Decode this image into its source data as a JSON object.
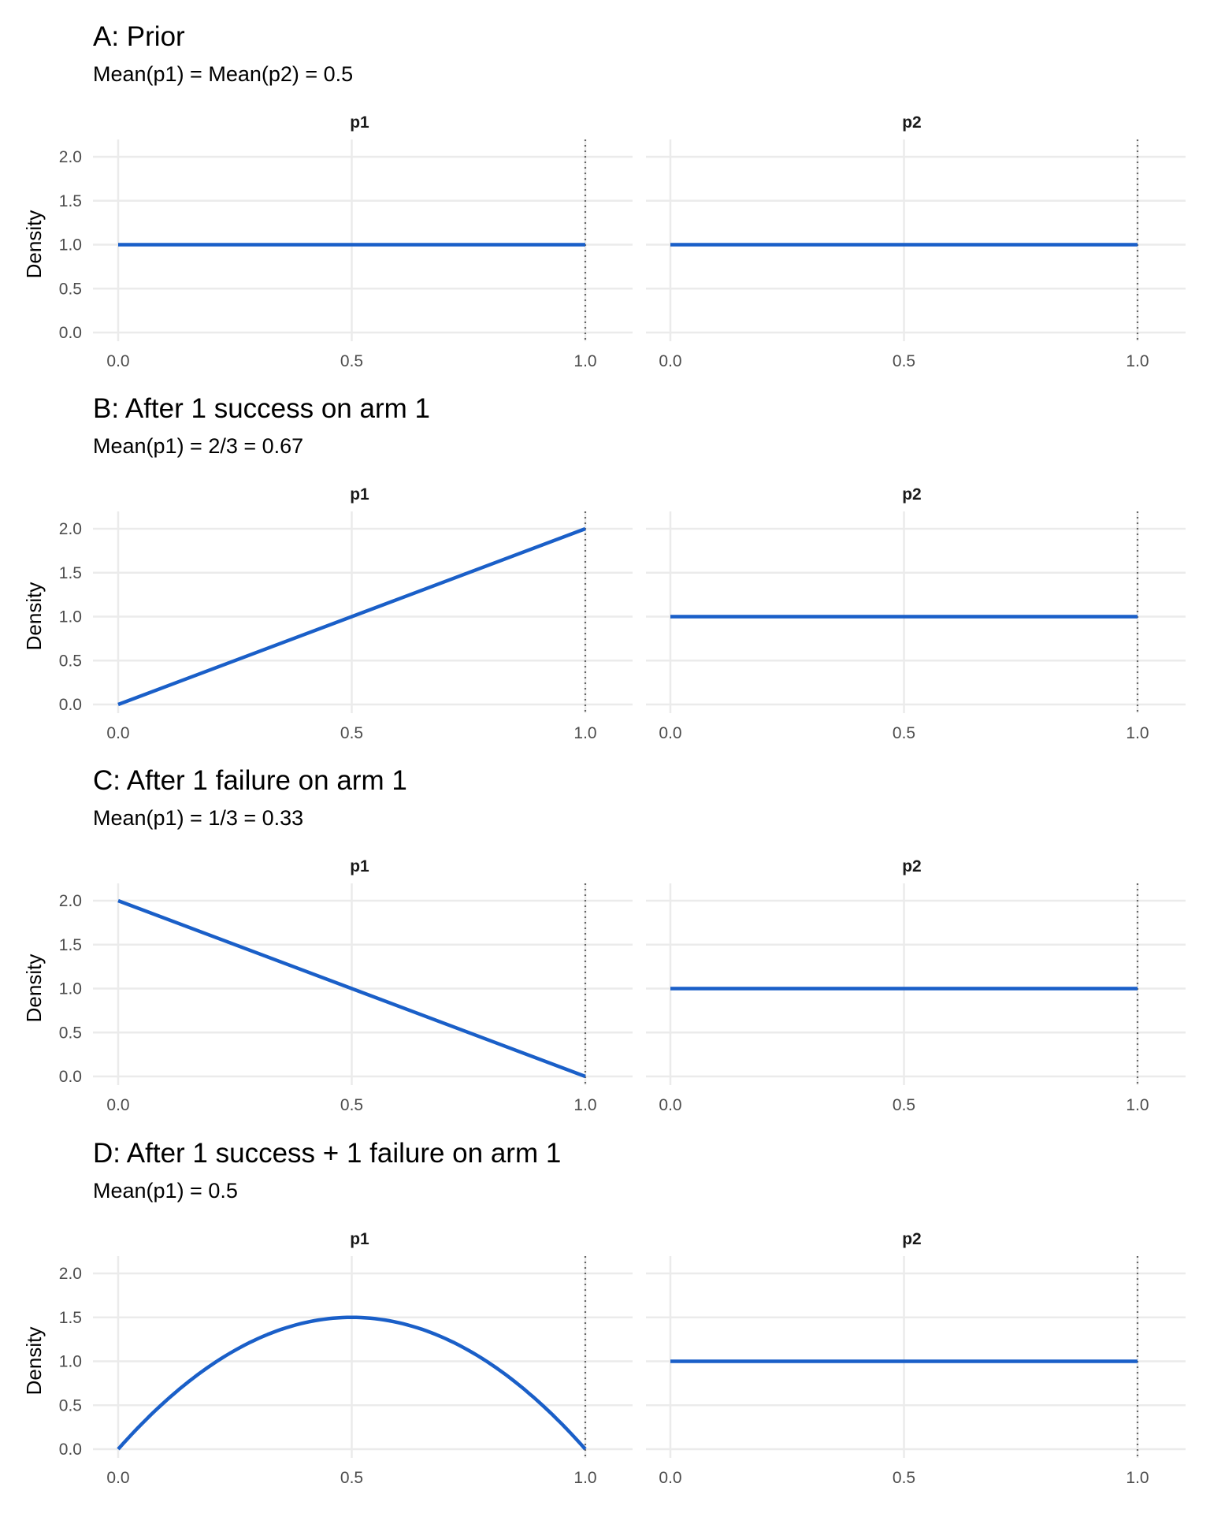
{
  "chart_data": [
    {
      "type": "line",
      "title": "A: Prior",
      "subtitle": "Mean(p1) = Mean(p2) = 0.5",
      "ylabel": "Density",
      "xlim": [
        0,
        1
      ],
      "ylim": [
        0,
        2
      ],
      "x_ticks": [
        "0.0",
        "0.5",
        "1.0"
      ],
      "y_ticks": [
        "0.0",
        "0.5",
        "1.0",
        "1.5",
        "2.0"
      ],
      "reference_line_x": 1.0,
      "facets": [
        {
          "label": "p1",
          "distribution": "Beta(1,1)",
          "x": [
            0,
            0.5,
            1
          ],
          "y": [
            1,
            1,
            1
          ]
        },
        {
          "label": "p2",
          "distribution": "Beta(1,1)",
          "x": [
            0,
            0.5,
            1
          ],
          "y": [
            1,
            1,
            1
          ]
        }
      ]
    },
    {
      "type": "line",
      "title": "B: After 1 success on arm 1",
      "subtitle": "Mean(p1) = 2/3 = 0.67",
      "ylabel": "Density",
      "xlim": [
        0,
        1
      ],
      "ylim": [
        0,
        2
      ],
      "x_ticks": [
        "0.0",
        "0.5",
        "1.0"
      ],
      "y_ticks": [
        "0.0",
        "0.5",
        "1.0",
        "1.5",
        "2.0"
      ],
      "reference_line_x": 1.0,
      "facets": [
        {
          "label": "p1",
          "distribution": "Beta(2,1)",
          "x": [
            0,
            0.5,
            1
          ],
          "y": [
            0,
            1,
            2
          ]
        },
        {
          "label": "p2",
          "distribution": "Beta(1,1)",
          "x": [
            0,
            0.5,
            1
          ],
          "y": [
            1,
            1,
            1
          ]
        }
      ]
    },
    {
      "type": "line",
      "title": "C: After 1 failure on arm 1",
      "subtitle": "Mean(p1) = 1/3 = 0.33",
      "ylabel": "Density",
      "xlim": [
        0,
        1
      ],
      "ylim": [
        0,
        2
      ],
      "x_ticks": [
        "0.0",
        "0.5",
        "1.0"
      ],
      "y_ticks": [
        "0.0",
        "0.5",
        "1.0",
        "1.5",
        "2.0"
      ],
      "reference_line_x": 1.0,
      "facets": [
        {
          "label": "p1",
          "distribution": "Beta(1,2)",
          "x": [
            0,
            0.5,
            1
          ],
          "y": [
            2,
            1,
            0
          ]
        },
        {
          "label": "p2",
          "distribution": "Beta(1,1)",
          "x": [
            0,
            0.5,
            1
          ],
          "y": [
            1,
            1,
            1
          ]
        }
      ]
    },
    {
      "type": "line",
      "title": "D: After 1 success + 1 failure on arm 1",
      "subtitle": "Mean(p1) = 0.5",
      "ylabel": "Density",
      "xlim": [
        0,
        1
      ],
      "ylim": [
        0,
        2
      ],
      "x_ticks": [
        "0.0",
        "0.5",
        "1.0"
      ],
      "y_ticks": [
        "0.0",
        "0.5",
        "1.0",
        "1.5",
        "2.0"
      ],
      "reference_line_x": 1.0,
      "facets": [
        {
          "label": "p1",
          "distribution": "Beta(2,2)",
          "x": [
            0,
            0.1,
            0.2,
            0.3,
            0.4,
            0.5,
            0.6,
            0.7,
            0.8,
            0.9,
            1
          ],
          "y": [
            0,
            0.54,
            0.96,
            1.26,
            1.44,
            1.5,
            1.44,
            1.26,
            0.96,
            0.54,
            0
          ]
        },
        {
          "label": "p2",
          "distribution": "Beta(1,1)",
          "x": [
            0,
            0.5,
            1
          ],
          "y": [
            1,
            1,
            1
          ]
        }
      ]
    }
  ],
  "colors": {
    "line": "#1a5fc8",
    "grid": "#ebebeb",
    "reference": "#666666",
    "tick_text": "#4d4d4d"
  }
}
